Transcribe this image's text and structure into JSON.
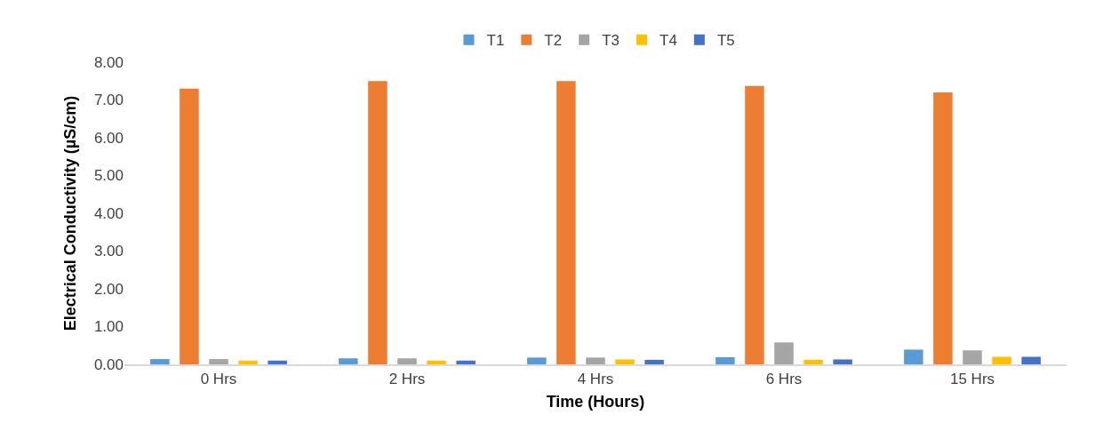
{
  "chart_data": {
    "type": "bar",
    "xlabel": "Time (Hours)",
    "ylabel": "Electrical Conductivity (µS/cm)",
    "categories": [
      "0 Hrs",
      "2 Hrs",
      "4 Hrs",
      "6 Hrs",
      "15 Hrs"
    ],
    "series": [
      {
        "name": "T1",
        "color": "#5b9bd5",
        "values": [
          0.14,
          0.16,
          0.18,
          0.19,
          0.39
        ]
      },
      {
        "name": "T2",
        "color": "#ed7d31",
        "values": [
          7.3,
          7.5,
          7.5,
          7.37,
          7.2
        ]
      },
      {
        "name": "T3",
        "color": "#a5a5a5",
        "values": [
          0.14,
          0.16,
          0.18,
          0.58,
          0.37
        ]
      },
      {
        "name": "T4",
        "color": "#ffc000",
        "values": [
          0.1,
          0.1,
          0.13,
          0.12,
          0.2
        ]
      },
      {
        "name": "T5",
        "color": "#4472c4",
        "values": [
          0.1,
          0.1,
          0.12,
          0.13,
          0.2
        ]
      }
    ],
    "ylim": [
      0,
      8
    ],
    "yticks": [
      {
        "value": 0,
        "label": "0.00"
      },
      {
        "value": 1,
        "label": "1.00"
      },
      {
        "value": 2,
        "label": "2.00"
      },
      {
        "value": 3,
        "label": "3.00"
      },
      {
        "value": 4,
        "label": "4.00"
      },
      {
        "value": 5,
        "label": "5.00"
      },
      {
        "value": 6,
        "label": "6.00"
      },
      {
        "value": 7,
        "label": "7.00"
      },
      {
        "value": 8,
        "label": "8.00"
      }
    ],
    "grid": false,
    "legend": "top"
  }
}
